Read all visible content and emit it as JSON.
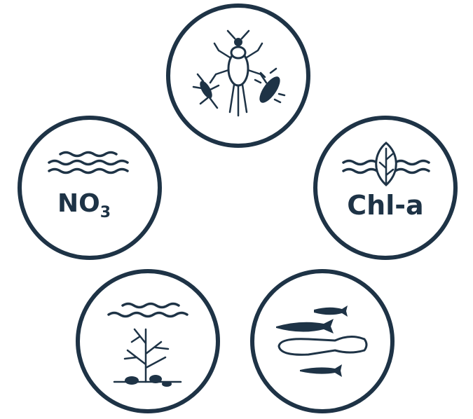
{
  "icons": [
    {
      "label": "NO",
      "subscript": "3"
    },
    {
      "label": "Chl-a"
    }
  ]
}
